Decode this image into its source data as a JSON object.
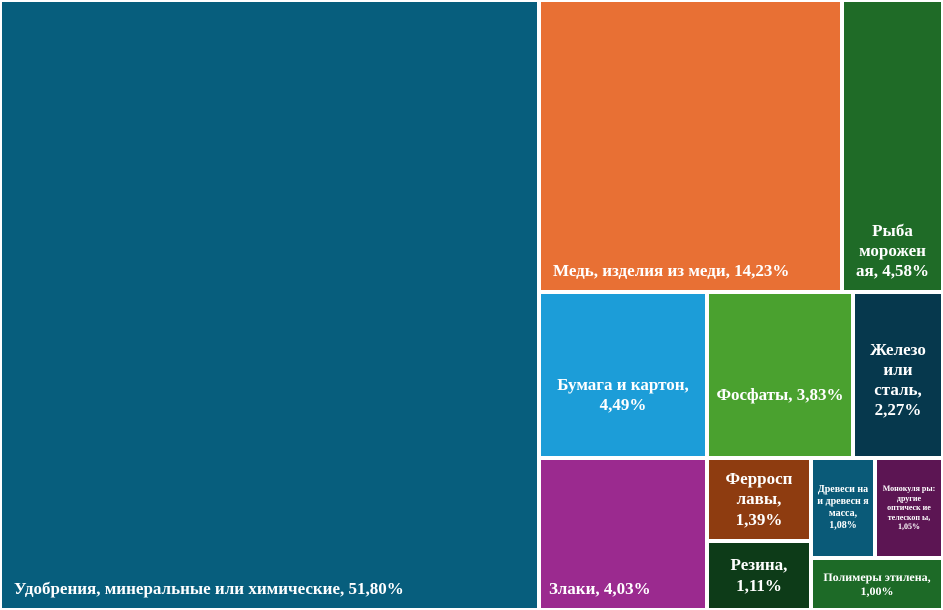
{
  "chart_data": {
    "type": "treemap",
    "items": [
      {
        "label": "Удобрения, минеральные или химические, 51,80%",
        "name": "Удобрения, минеральные или химические",
        "value": 51.8,
        "color": "#075e7d"
      },
      {
        "label": "Медь, изделия из меди, 14,23%",
        "name": "Медь, изделия из меди",
        "value": 14.23,
        "color": "#e87034"
      },
      {
        "label": "Рыба морожен ая, 4,58%",
        "name": "Рыба мороженая",
        "value": 4.58,
        "color": "#1f6b27"
      },
      {
        "label": "Бумага и картон, 4,49%",
        "name": "Бумага и картон",
        "value": 4.49,
        "color": "#1c9dd8"
      },
      {
        "label": "Фосфаты, 3,83%",
        "name": "Фосфаты",
        "value": 3.83,
        "color": "#4aa12f"
      },
      {
        "label": "Железо или сталь, 2,27%",
        "name": "Железо или сталь",
        "value": 2.27,
        "color": "#06384d"
      },
      {
        "label": "Злаки, 4,03%",
        "name": "Злаки",
        "value": 4.03,
        "color": "#9b2a8f"
      },
      {
        "label": "Ферросп лавы, 1,39%",
        "name": "Ферросплавы",
        "value": 1.39,
        "color": "#8e3c10"
      },
      {
        "label": "Древеси на и древесн я масса, 1,08%",
        "name": "Древесина и древесная масса",
        "value": 1.08,
        "color": "#0a5a78"
      },
      {
        "label": "Монокуля ры: другие оптическ ие телескоп ы, 1,05%",
        "name": "Монокуляры: другие оптические телескопы",
        "value": 1.05,
        "color": "#5c1553"
      },
      {
        "label": "Резина, 1,11%",
        "name": "Резина",
        "value": 1.11,
        "color": "#0d3b18"
      },
      {
        "label": "Полимеры этилена, 1,00%",
        "name": "Полимеры этилена",
        "value": 1.0,
        "color": "#1d6a27"
      }
    ]
  }
}
